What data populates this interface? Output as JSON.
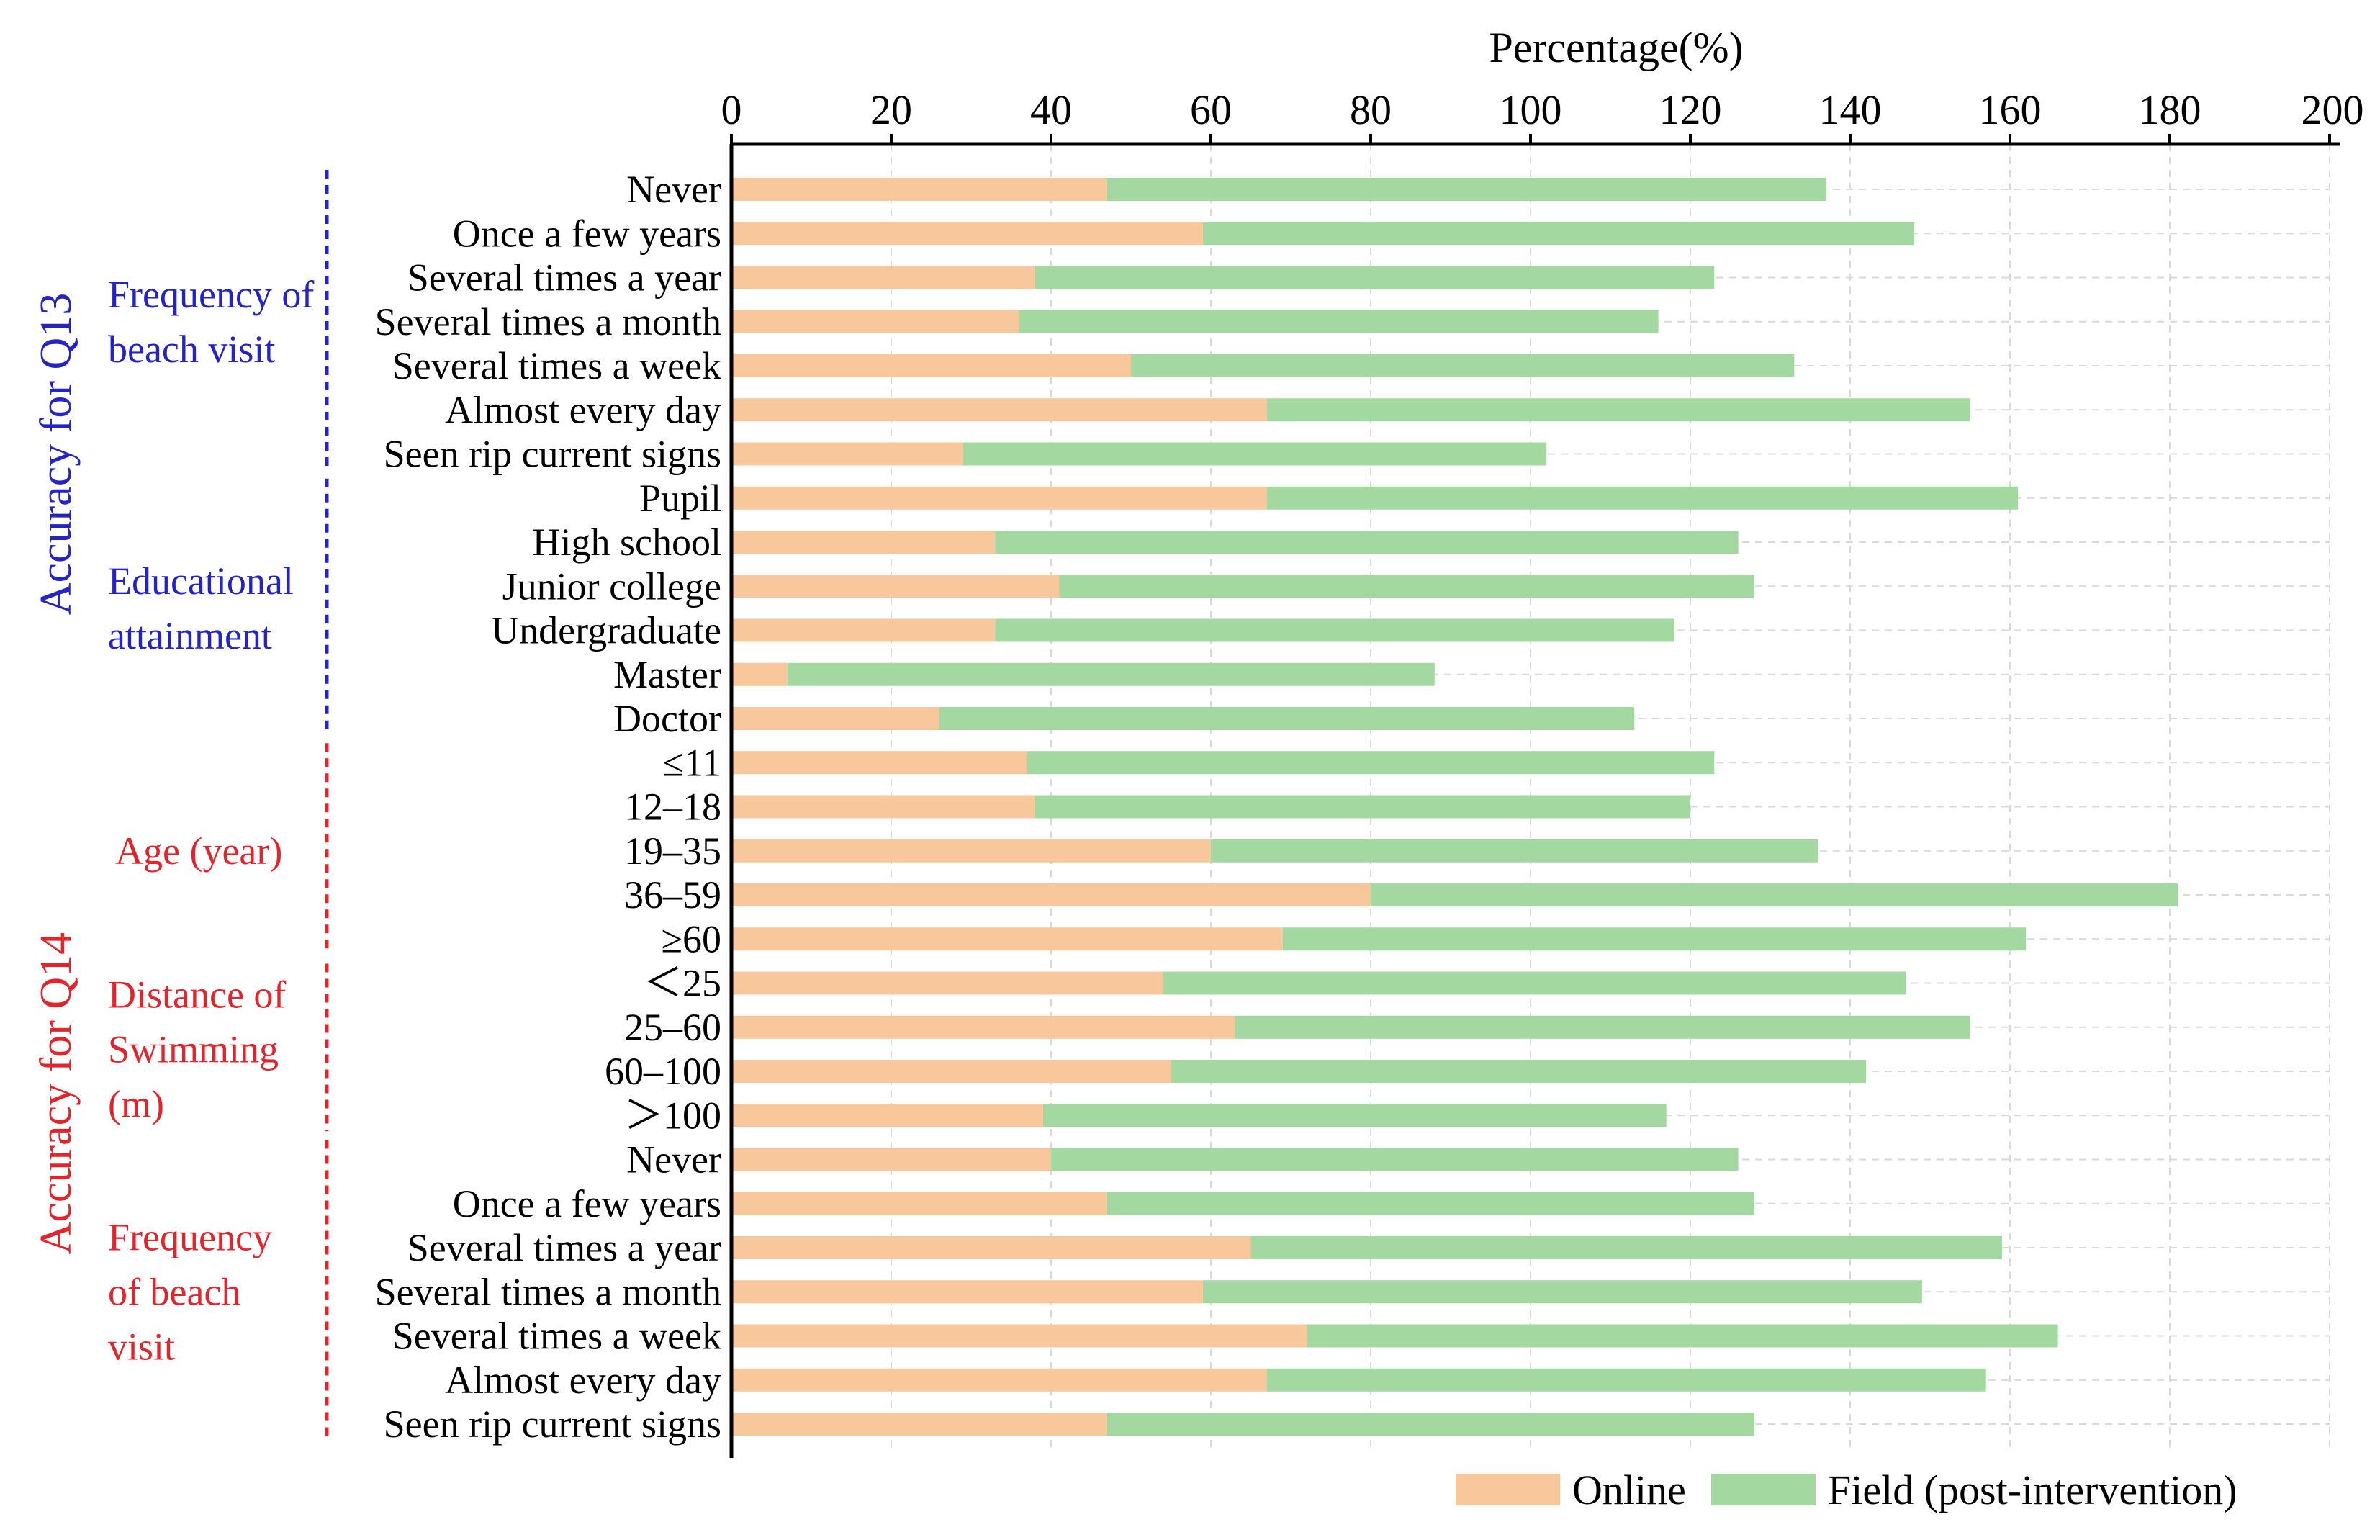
{
  "chart_data": {
    "type": "bar",
    "stacked": true,
    "orientation": "horizontal",
    "xlabel": "Percentage(%)",
    "xlim": [
      0,
      200
    ],
    "xticks": [
      0,
      20,
      40,
      60,
      80,
      100,
      120,
      140,
      160,
      180,
      200
    ],
    "grid": true,
    "legend_position": "bottom-right",
    "categories": [
      "Never",
      "Once a few years",
      "Several times a year",
      "Several times a month",
      "Several times a week",
      "Almost every day",
      "Seen rip current signs",
      "Pupil",
      "High school",
      "Junior college",
      "Undergraduate",
      "Master",
      "Doctor",
      "≤11",
      "12–18",
      "19–35",
      "36–59",
      "≥60",
      "＜25",
      "25–60",
      "60–100",
      "＞100",
      "Never",
      "Once a few years",
      "Several times a year",
      "Several times a month",
      "Several times a week",
      "Almost every day",
      "Seen rip current signs"
    ],
    "series": [
      {
        "name": "Online",
        "color": "#F9C79C",
        "values": [
          47,
          59,
          38,
          36,
          50,
          67,
          29,
          67,
          33,
          41,
          33,
          7,
          26,
          37,
          38,
          60,
          80,
          69,
          54,
          63,
          55,
          39,
          40,
          47,
          65,
          59,
          72,
          67,
          47
        ]
      },
      {
        "name": "Field (post-intervention)",
        "color": "#A3D9A0",
        "values": [
          90,
          89,
          85,
          80,
          83,
          88,
          73,
          94,
          93,
          87,
          85,
          81,
          87,
          86,
          82,
          76,
          101,
          93,
          93,
          92,
          87,
          78,
          86,
          81,
          94,
          90,
          94,
          90,
          81
        ]
      }
    ],
    "groups": [
      {
        "label_lines": [
          "Frequency of",
          "beach visit"
        ],
        "color": "#2323C8",
        "first": 0,
        "last": 6
      },
      {
        "label_lines": [
          "Educational",
          "attainment"
        ],
        "color": "#2323C8",
        "first": 7,
        "last": 12
      },
      {
        "label_lines": [
          "Age (year)"
        ],
        "color": "#E3242B",
        "first": 13,
        "last": 17
      },
      {
        "label_lines": [
          "Distance of",
          "Swimming",
          "(m)"
        ],
        "color": "#E3242B",
        "first": 18,
        "last": 21
      },
      {
        "label_lines": [
          "Frequency",
          "of beach",
          "visit"
        ],
        "color": "#E3242B",
        "first": 22,
        "last": 28
      }
    ],
    "side_labels": [
      {
        "text": "Accuracy for Q13",
        "color": "#2323C8",
        "first": 0,
        "last": 12
      },
      {
        "text": "Accuracy for Q14",
        "color": "#E3242B",
        "first": 13,
        "last": 28
      }
    ]
  }
}
